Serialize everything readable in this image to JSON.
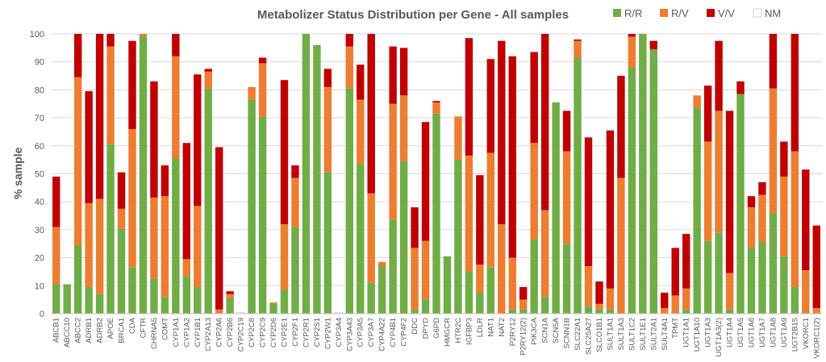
{
  "chart_data": {
    "type": "stacked-bar",
    "title": "Metabolizer Status Distribution per Gene - All samples",
    "xlabel": "",
    "ylabel": "% sample",
    "ylim": [
      0,
      100
    ],
    "yticks": [
      0,
      10,
      20,
      30,
      40,
      50,
      60,
      70,
      80,
      90,
      100
    ],
    "grid": true,
    "legend_position": "top-right",
    "colors": {
      "R/R": "#70AD47",
      "R/V": "#ED7D31",
      "V/V": "#C00000",
      "NM": "#FFFFFF"
    },
    "categories": [
      "ABCB1",
      "ABCC10",
      "ABCC2",
      "ADRB1",
      "ADRB2",
      "APOE",
      "BRCA1",
      "CDA",
      "CFTR",
      "CHRNA5",
      "COMT",
      "CYP1A1",
      "CYP1A2",
      "CYP1B1",
      "CYP2A13",
      "CYP2A6",
      "CYP2B6",
      "CYP2C19",
      "CYP2C8",
      "CYP2C9",
      "CYP2D6",
      "CYP2E1",
      "CYP2F1",
      "CYP2R1",
      "CYP2S1",
      "CYP2W1",
      "CYP3A4",
      "CYP3A43",
      "CYP3A5",
      "CYP3A7",
      "CYP4A22",
      "CYP4B1",
      "CYP4F2",
      "DDC",
      "DPYD",
      "G6PD",
      "HMGCR",
      "HTR2C",
      "IGFBP3",
      "LDLR",
      "NAT1",
      "NAT2",
      "P2RY12",
      "P2RY12(2)",
      "PIK3CA",
      "SCN1A",
      "SCN5A",
      "SCNN1B",
      "SLC22A1",
      "SLC25A27",
      "SLCO1B1",
      "SULT1A1",
      "SULT1A3",
      "SULT1C2",
      "SULT1E1",
      "SULT2A1",
      "SULT4A1",
      "TPMT",
      "UGT1A1",
      "UGT1A10",
      "UGT1A3",
      "UGT1A3(2)",
      "UGT1A4",
      "UGT1A5",
      "UGT1A6",
      "UGT1A7",
      "UGT1A8",
      "UGT1A9",
      "UGT2B15",
      "VKORC1",
      "VKORC1(2)"
    ],
    "series": [
      {
        "name": "R/R",
        "values": [
          10.5,
          10.5,
          24.5,
          9.5,
          7,
          60.5,
          30.5,
          16.5,
          99,
          12.5,
          6,
          55.5,
          13.5,
          9.5,
          80.5,
          0,
          5.5,
          0,
          76.5,
          70.5,
          3.5,
          8.5,
          31,
          100,
          96,
          50.5,
          0,
          80.5,
          53.5,
          11,
          17,
          33.5,
          54.5,
          1.5,
          5,
          71.5,
          20.5,
          55,
          15,
          7.5,
          16.5,
          0,
          1.5,
          1.5,
          26.5,
          6,
          75.5,
          25,
          91.5,
          2.5,
          1.5,
          1.5,
          0,
          88,
          100,
          94.5,
          0,
          0,
          1.5,
          73.5,
          26,
          29,
          1.5,
          78.5,
          23.5,
          25.5,
          36,
          20.5,
          9.5,
          0,
          0
        ]
      },
      {
        "name": "R/V",
        "values": [
          20.5,
          0,
          60,
          30,
          34,
          35,
          7,
          49.5,
          1,
          29,
          36,
          36.5,
          6,
          29,
          6,
          1.5,
          1.5,
          0,
          4.5,
          19,
          0.5,
          23.5,
          17.5,
          0,
          0,
          30.5,
          0,
          15,
          23,
          32,
          1.5,
          41.5,
          23.5,
          22,
          21,
          4,
          0,
          15.5,
          41.5,
          10,
          41,
          32,
          18.5,
          3.5,
          34.5,
          31,
          0,
          33,
          6,
          14.5,
          2,
          7.5,
          48.5,
          11,
          0,
          0,
          2,
          6.5,
          7.5,
          4.5,
          35.5,
          43.5,
          13,
          0,
          14.5,
          17,
          44.5,
          28.5,
          48.5,
          15.5,
          2
        ]
      },
      {
        "name": "V/V",
        "values": [
          18,
          0,
          15.5,
          40,
          59,
          4.5,
          13,
          31.5,
          0,
          41.5,
          11,
          8,
          41.5,
          47,
          1,
          58,
          1,
          0,
          0,
          2,
          0,
          51.5,
          4.5,
          0,
          0,
          6.5,
          0,
          4.5,
          12.5,
          57,
          0,
          20.5,
          17,
          14.5,
          42.5,
          0.5,
          0,
          0,
          42,
          32,
          33.5,
          65.5,
          72,
          4.5,
          32.5,
          63,
          0,
          14.5,
          0.5,
          46,
          8,
          56.5,
          36.5,
          1,
          0,
          3,
          5.5,
          17,
          19.5,
          0,
          20,
          25,
          58,
          4.5,
          4,
          4.5,
          19.5,
          12.5,
          42,
          36,
          29.5
        ]
      },
      {
        "name": "NM",
        "values": [
          0,
          0,
          0,
          0,
          0,
          0,
          0,
          0,
          0,
          0,
          0,
          0,
          0,
          0,
          0,
          0,
          0,
          0.5,
          0,
          0,
          0,
          0,
          0,
          0,
          0,
          0,
          0.5,
          0,
          0,
          0,
          0,
          0,
          0,
          0,
          0,
          0,
          0,
          0,
          0,
          0,
          0,
          0,
          0,
          0,
          0,
          0,
          0,
          0,
          0,
          0,
          0,
          0,
          0,
          0,
          0,
          0,
          0,
          0,
          0,
          0,
          0,
          0,
          0,
          0,
          0,
          0,
          0,
          0,
          0,
          0,
          0
        ]
      }
    ]
  }
}
